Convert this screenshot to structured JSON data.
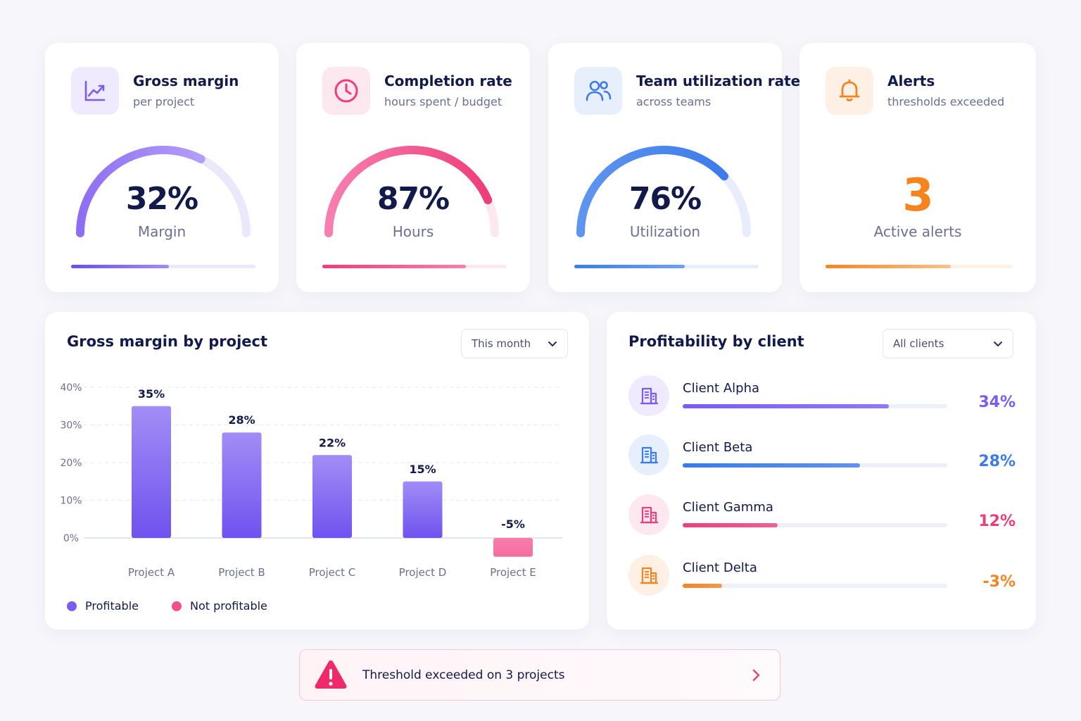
{
  "kpis": [
    {
      "title": "Gross margin",
      "subtitle": "per project",
      "value": "32%",
      "label": "Margin",
      "icon": "trend-up-icon",
      "gauge_fraction": 0.65,
      "bar_fraction": 0.53,
      "colors": {
        "accent": "#7b5cf0",
        "accent_light": "#a48cf5",
        "track": "#ebe8fb",
        "tile": "#efeafd"
      }
    },
    {
      "title": "Completion rate",
      "subtitle": "hours spent / budget",
      "value": "87%",
      "label": "Hours",
      "icon": "clock-icon",
      "gauge_fraction": 0.87,
      "bar_fraction": 0.78,
      "colors": {
        "accent": "#ee3d7a",
        "accent_light": "#f77fb0",
        "track": "#fde8ef",
        "tile": "#fde8ef"
      }
    },
    {
      "title": "Team utilization rate",
      "subtitle": "across teams",
      "value": "76%",
      "label": "Utilization",
      "icon": "users-icon",
      "gauge_fraction": 0.76,
      "bar_fraction": 0.6,
      "colors": {
        "accent": "#3c7be8",
        "accent_light": "#6fa2f3",
        "track": "#e7edfb",
        "tile": "#e8effc"
      }
    },
    {
      "title": "Alerts",
      "subtitle": "thresholds exceeded",
      "value": "3",
      "label": "Active alerts",
      "icon": "bell-icon",
      "bar_fraction": 0.67,
      "colors": {
        "accent": "#f5841f",
        "accent_light": "#f8b36f",
        "track": "#fdf1e6",
        "tile": "#fef0e4"
      }
    }
  ],
  "margin_panel": {
    "title": "Gross margin by project",
    "filter": "This month",
    "legend": [
      {
        "label": "Profitable",
        "color": "#7b5cf0"
      },
      {
        "label": "Not profitable",
        "color": "#f0508c"
      }
    ]
  },
  "chart_data": {
    "type": "bar",
    "categories": [
      "Project A",
      "Project B",
      "Project C",
      "Project D",
      "Project E"
    ],
    "values": [
      35,
      28,
      22,
      15,
      -5
    ],
    "data_labels": [
      "35%",
      "28%",
      "22%",
      "15%",
      "-5%"
    ],
    "yticks": [
      "0%",
      "10%",
      "20%",
      "30%",
      "40%"
    ],
    "ylim": [
      0,
      40
    ],
    "grid": true,
    "legend_position": "bottom-left",
    "colors": {
      "profitable": "#7b5cf0",
      "not_profitable": "#f0508c"
    }
  },
  "client_panel": {
    "title": "Profitability by client",
    "filter": "All clients",
    "clients": [
      {
        "name": "Client Alpha",
        "pct": "34%",
        "fraction": 0.78,
        "color": "#7b5cf0",
        "light": "#efeafd",
        "icon": "building-icon"
      },
      {
        "name": "Client Beta",
        "pct": "28%",
        "fraction": 0.67,
        "color": "#3c7be8",
        "light": "#e8effc",
        "icon": "building-icon"
      },
      {
        "name": "Client Gamma",
        "pct": "12%",
        "fraction": 0.36,
        "color": "#ee3d7a",
        "light": "#fde8ef",
        "icon": "building-icon"
      },
      {
        "name": "Client Delta",
        "pct": "-3%",
        "fraction": 0.15,
        "color": "#f5841f",
        "light": "#fef0e4",
        "icon": "building-icon"
      }
    ]
  },
  "alert_banner": {
    "text": "Threshold exceeded on 3 projects",
    "icon": "warning-icon",
    "action_icon": "chevron-right-icon",
    "color": "#ee3d7a"
  }
}
